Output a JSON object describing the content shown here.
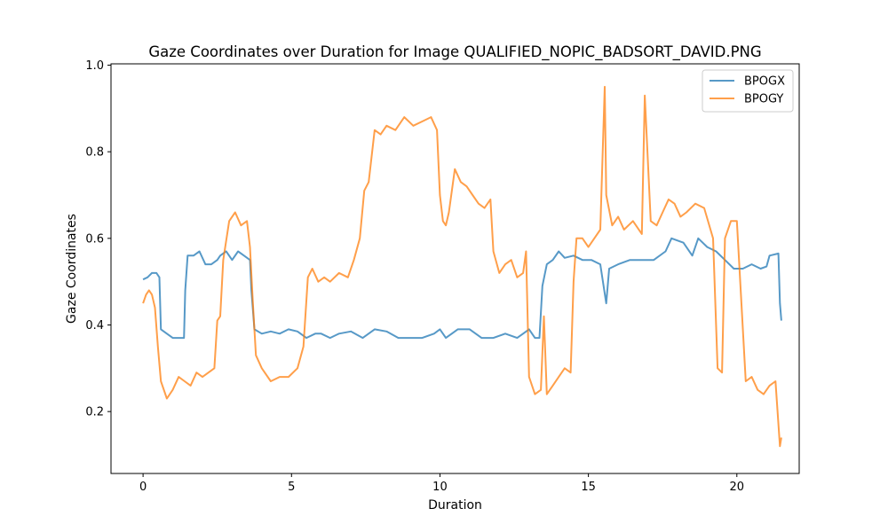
{
  "chart_data": {
    "type": "line",
    "title": "Gaze Coordinates over Duration for Image QUALIFIED_NOPIC_BADSORT_DAVID.PNG",
    "xlabel": "Duration",
    "ylabel": "Gaze Coordinates",
    "xlim": [
      -1.08,
      22.1
    ],
    "ylim": [
      0.057,
      1.003
    ],
    "xticks": [
      0,
      5,
      10,
      15,
      20
    ],
    "yticks": [
      0.2,
      0.4,
      0.6,
      0.8,
      1.0
    ],
    "xtick_labels": [
      "0",
      "5",
      "10",
      "15",
      "20"
    ],
    "ytick_labels": [
      "0.2",
      "0.4",
      "0.6",
      "0.8",
      "1.0"
    ],
    "grid": false,
    "legend_position": "top-right",
    "series": [
      {
        "name": "BPOGX",
        "color": "#1f77b4",
        "x": [
          0,
          0.15,
          0.3,
          0.45,
          0.55,
          0.6,
          0.8,
          1.0,
          1.2,
          1.38,
          1.42,
          1.5,
          1.7,
          1.9,
          2.1,
          2.3,
          2.5,
          2.6,
          2.8,
          3.0,
          3.2,
          3.4,
          3.6,
          3.65,
          3.75,
          4.0,
          4.3,
          4.6,
          4.9,
          5.2,
          5.5,
          5.8,
          6.0,
          6.3,
          6.6,
          7.0,
          7.4,
          7.8,
          8.2,
          8.6,
          9.0,
          9.4,
          9.8,
          10.0,
          10.2,
          10.6,
          11.0,
          11.4,
          11.8,
          12.2,
          12.6,
          12.8,
          13.0,
          13.2,
          13.35,
          13.45,
          13.6,
          13.8,
          14.0,
          14.2,
          14.5,
          14.8,
          15.1,
          15.4,
          15.6,
          15.7,
          16.0,
          16.4,
          16.8,
          17.2,
          17.6,
          17.8,
          18.2,
          18.5,
          18.7,
          19.0,
          19.3,
          19.6,
          19.9,
          20.2,
          20.5,
          20.8,
          21.0,
          21.1,
          21.4,
          21.45,
          21.5
        ],
        "values": [
          0.505,
          0.51,
          0.52,
          0.52,
          0.51,
          0.39,
          0.38,
          0.37,
          0.37,
          0.37,
          0.48,
          0.56,
          0.56,
          0.57,
          0.54,
          0.54,
          0.55,
          0.56,
          0.57,
          0.55,
          0.57,
          0.56,
          0.55,
          0.48,
          0.39,
          0.38,
          0.385,
          0.38,
          0.39,
          0.385,
          0.37,
          0.38,
          0.38,
          0.37,
          0.38,
          0.385,
          0.37,
          0.39,
          0.385,
          0.37,
          0.37,
          0.37,
          0.38,
          0.39,
          0.37,
          0.39,
          0.39,
          0.37,
          0.37,
          0.38,
          0.37,
          0.38,
          0.39,
          0.37,
          0.37,
          0.49,
          0.54,
          0.55,
          0.57,
          0.555,
          0.56,
          0.55,
          0.55,
          0.54,
          0.45,
          0.53,
          0.54,
          0.55,
          0.55,
          0.55,
          0.57,
          0.6,
          0.59,
          0.56,
          0.6,
          0.58,
          0.57,
          0.55,
          0.53,
          0.53,
          0.54,
          0.53,
          0.535,
          0.56,
          0.565,
          0.45,
          0.41
        ]
      },
      {
        "name": "BPOGY",
        "color": "#ff7f0e",
        "x": [
          0,
          0.1,
          0.2,
          0.3,
          0.4,
          0.5,
          0.6,
          0.8,
          1.0,
          1.2,
          1.4,
          1.6,
          1.8,
          2.0,
          2.2,
          2.4,
          2.5,
          2.6,
          2.7,
          2.9,
          3.1,
          3.3,
          3.5,
          3.6,
          3.7,
          3.8,
          4.0,
          4.3,
          4.6,
          4.9,
          5.2,
          5.4,
          5.55,
          5.7,
          5.9,
          6.1,
          6.3,
          6.6,
          6.9,
          7.1,
          7.3,
          7.45,
          7.6,
          7.8,
          8.0,
          8.2,
          8.5,
          8.8,
          9.1,
          9.4,
          9.7,
          9.9,
          10.0,
          10.1,
          10.2,
          10.3,
          10.5,
          10.7,
          10.9,
          11.1,
          11.3,
          11.5,
          11.7,
          11.8,
          12.0,
          12.2,
          12.4,
          12.6,
          12.8,
          12.9,
          13.0,
          13.2,
          13.4,
          13.5,
          13.6,
          13.8,
          14.0,
          14.2,
          14.4,
          14.5,
          14.6,
          14.8,
          15.0,
          15.2,
          15.4,
          15.55,
          15.6,
          15.8,
          16.0,
          16.2,
          16.5,
          16.8,
          16.9,
          17.1,
          17.3,
          17.5,
          17.7,
          17.9,
          18.1,
          18.3,
          18.6,
          18.9,
          19.2,
          19.35,
          19.5,
          19.6,
          19.8,
          20.0,
          20.3,
          20.5,
          20.7,
          20.9,
          21.1,
          21.3,
          21.45,
          21.5
        ],
        "values": [
          0.45,
          0.47,
          0.48,
          0.47,
          0.44,
          0.35,
          0.27,
          0.23,
          0.25,
          0.28,
          0.27,
          0.26,
          0.29,
          0.28,
          0.29,
          0.3,
          0.41,
          0.42,
          0.55,
          0.64,
          0.66,
          0.63,
          0.64,
          0.58,
          0.45,
          0.33,
          0.3,
          0.27,
          0.28,
          0.28,
          0.3,
          0.35,
          0.51,
          0.53,
          0.5,
          0.51,
          0.5,
          0.52,
          0.51,
          0.55,
          0.6,
          0.71,
          0.73,
          0.85,
          0.84,
          0.86,
          0.85,
          0.88,
          0.86,
          0.87,
          0.88,
          0.85,
          0.7,
          0.64,
          0.63,
          0.66,
          0.76,
          0.73,
          0.72,
          0.7,
          0.68,
          0.67,
          0.69,
          0.57,
          0.52,
          0.54,
          0.55,
          0.51,
          0.52,
          0.57,
          0.28,
          0.24,
          0.25,
          0.42,
          0.24,
          0.26,
          0.28,
          0.3,
          0.29,
          0.5,
          0.6,
          0.6,
          0.58,
          0.6,
          0.62,
          0.95,
          0.7,
          0.63,
          0.65,
          0.62,
          0.64,
          0.61,
          0.93,
          0.64,
          0.63,
          0.66,
          0.69,
          0.68,
          0.65,
          0.66,
          0.68,
          0.67,
          0.6,
          0.3,
          0.29,
          0.6,
          0.64,
          0.64,
          0.27,
          0.28,
          0.25,
          0.24,
          0.26,
          0.27,
          0.12,
          0.14
        ]
      }
    ]
  }
}
